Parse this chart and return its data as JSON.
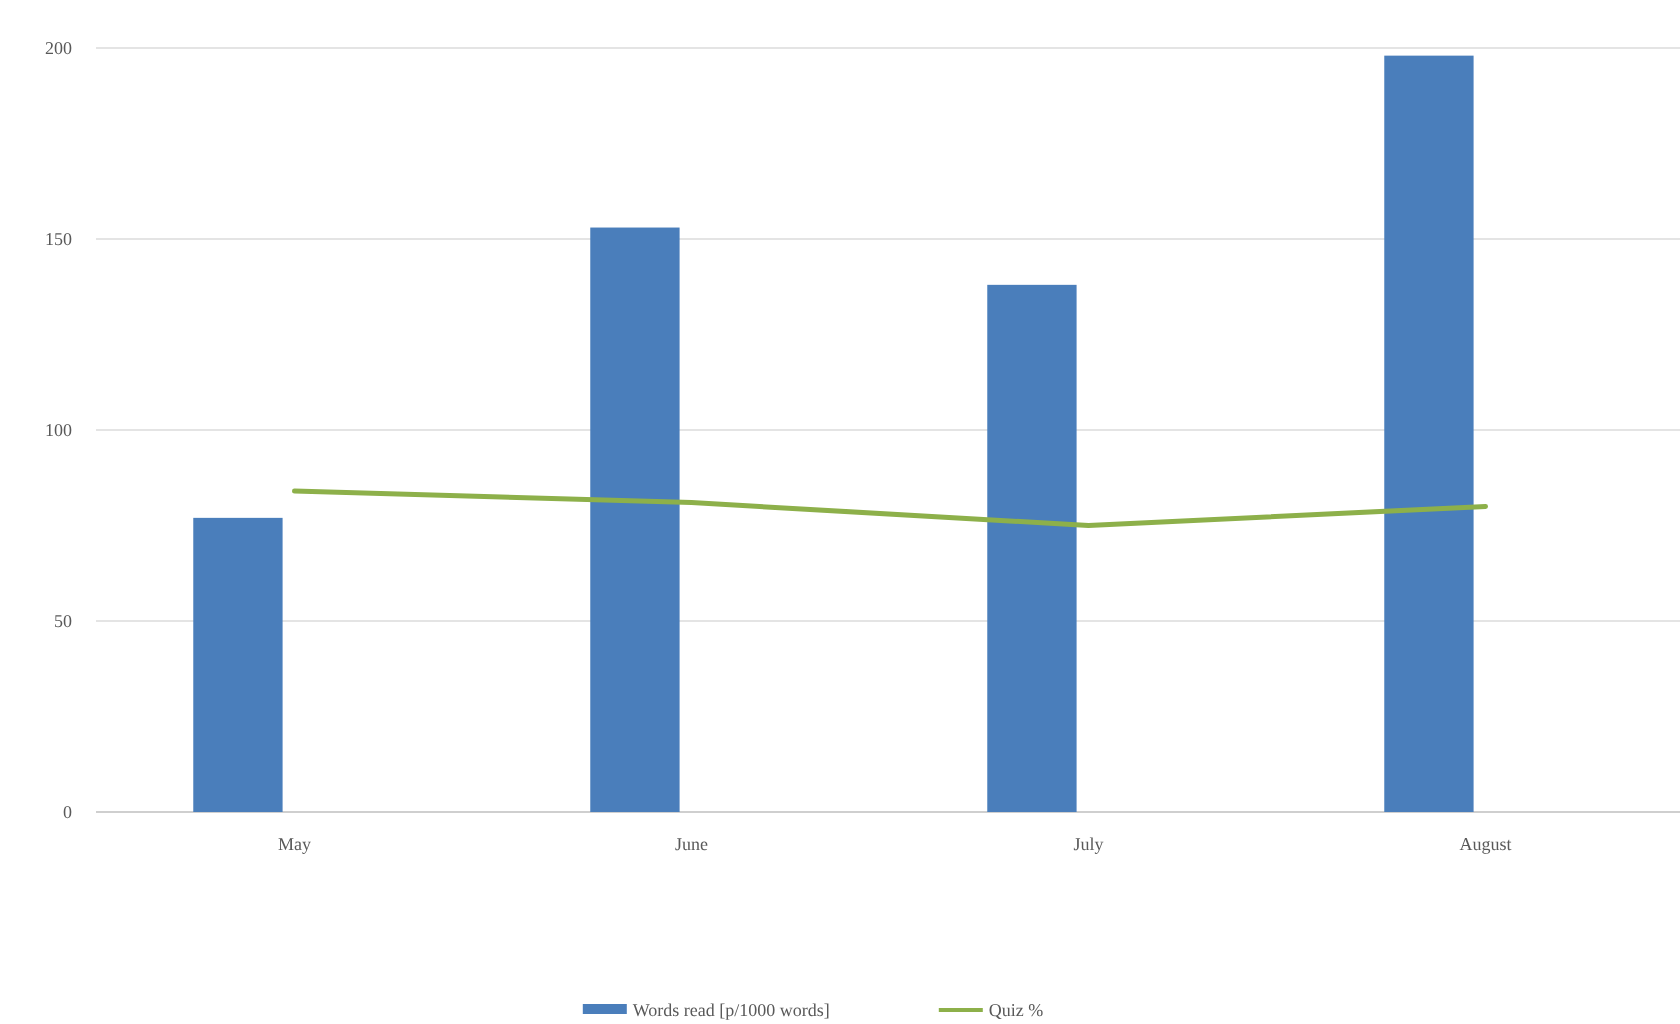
{
  "chart_data": {
    "type": "bar",
    "categories": [
      "May",
      "June",
      "July",
      "August"
    ],
    "series": [
      {
        "name": "Words read [p/1000 words]",
        "color": "#4a7ebb",
        "values": [
          77,
          153,
          138,
          198
        ]
      },
      {
        "name": "Quiz %",
        "type": "line",
        "color": "#8db04a",
        "values": [
          84,
          81,
          75,
          80
        ]
      }
    ],
    "ylim": [
      0,
      200
    ],
    "yticks": [
      0,
      50,
      100,
      150,
      200
    ],
    "grid": "y",
    "legend": "bottom",
    "marker": "none"
  }
}
